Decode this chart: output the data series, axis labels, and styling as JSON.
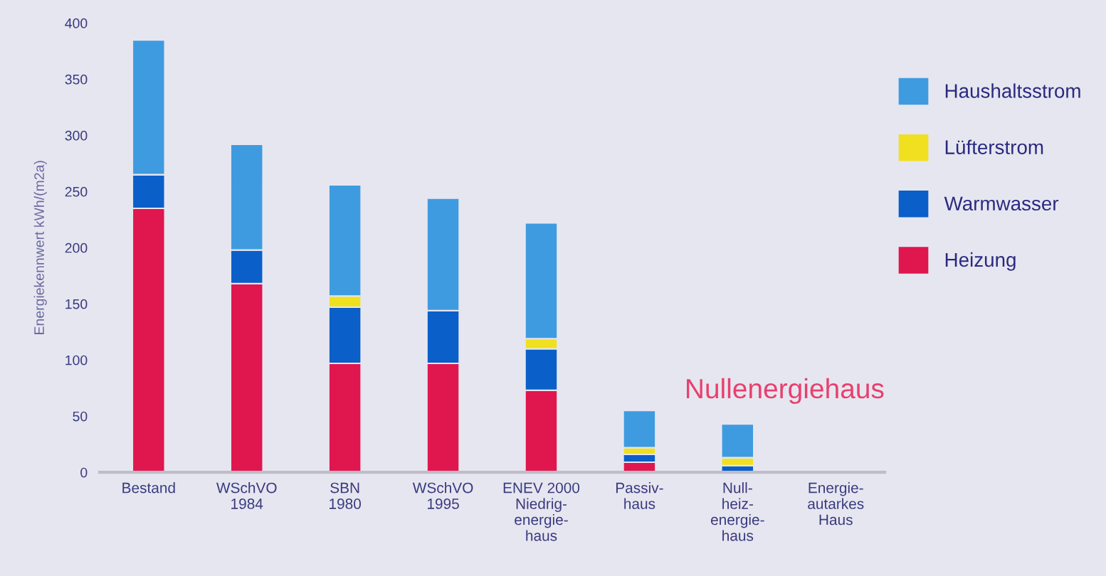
{
  "chart_data": {
    "type": "bar",
    "stacked": true,
    "ylabel": "Energiekennwert kWh/(m2a)",
    "categories": [
      "Bestand",
      "WSchVO\n1984",
      "SBN\n1980",
      "WSchVO\n1995",
      "ENEV 2000\nNiedrig-\nenergie-\nhaus",
      "Passiv-\nhaus",
      "Null-\nheiz-\nenergie-\nhaus",
      "Energie-\nautarkes\nHaus"
    ],
    "series": [
      {
        "name": "Heizung",
        "color": "#e0164e",
        "values": [
          235,
          168,
          97,
          97,
          73,
          9,
          0,
          null
        ]
      },
      {
        "name": "Warmwasser",
        "color": "#0a5fc8",
        "values": [
          30,
          30,
          50,
          47,
          37,
          7,
          6,
          null
        ]
      },
      {
        "name": "Lüfterstrom",
        "color": "#f0e020",
        "values": [
          0,
          0,
          10,
          0,
          9,
          6,
          7,
          null
        ]
      },
      {
        "name": "Haushaltsstrom",
        "color": "#3f9be0",
        "values": [
          120,
          94,
          99,
          100,
          103,
          33,
          30,
          null
        ]
      }
    ],
    "ylim": [
      0,
      400
    ],
    "yticks": [
      0,
      50,
      100,
      150,
      200,
      250,
      300,
      350,
      400
    ],
    "grid": false,
    "legend": "right",
    "annotations": [
      "Nullenergiehaus"
    ]
  }
}
